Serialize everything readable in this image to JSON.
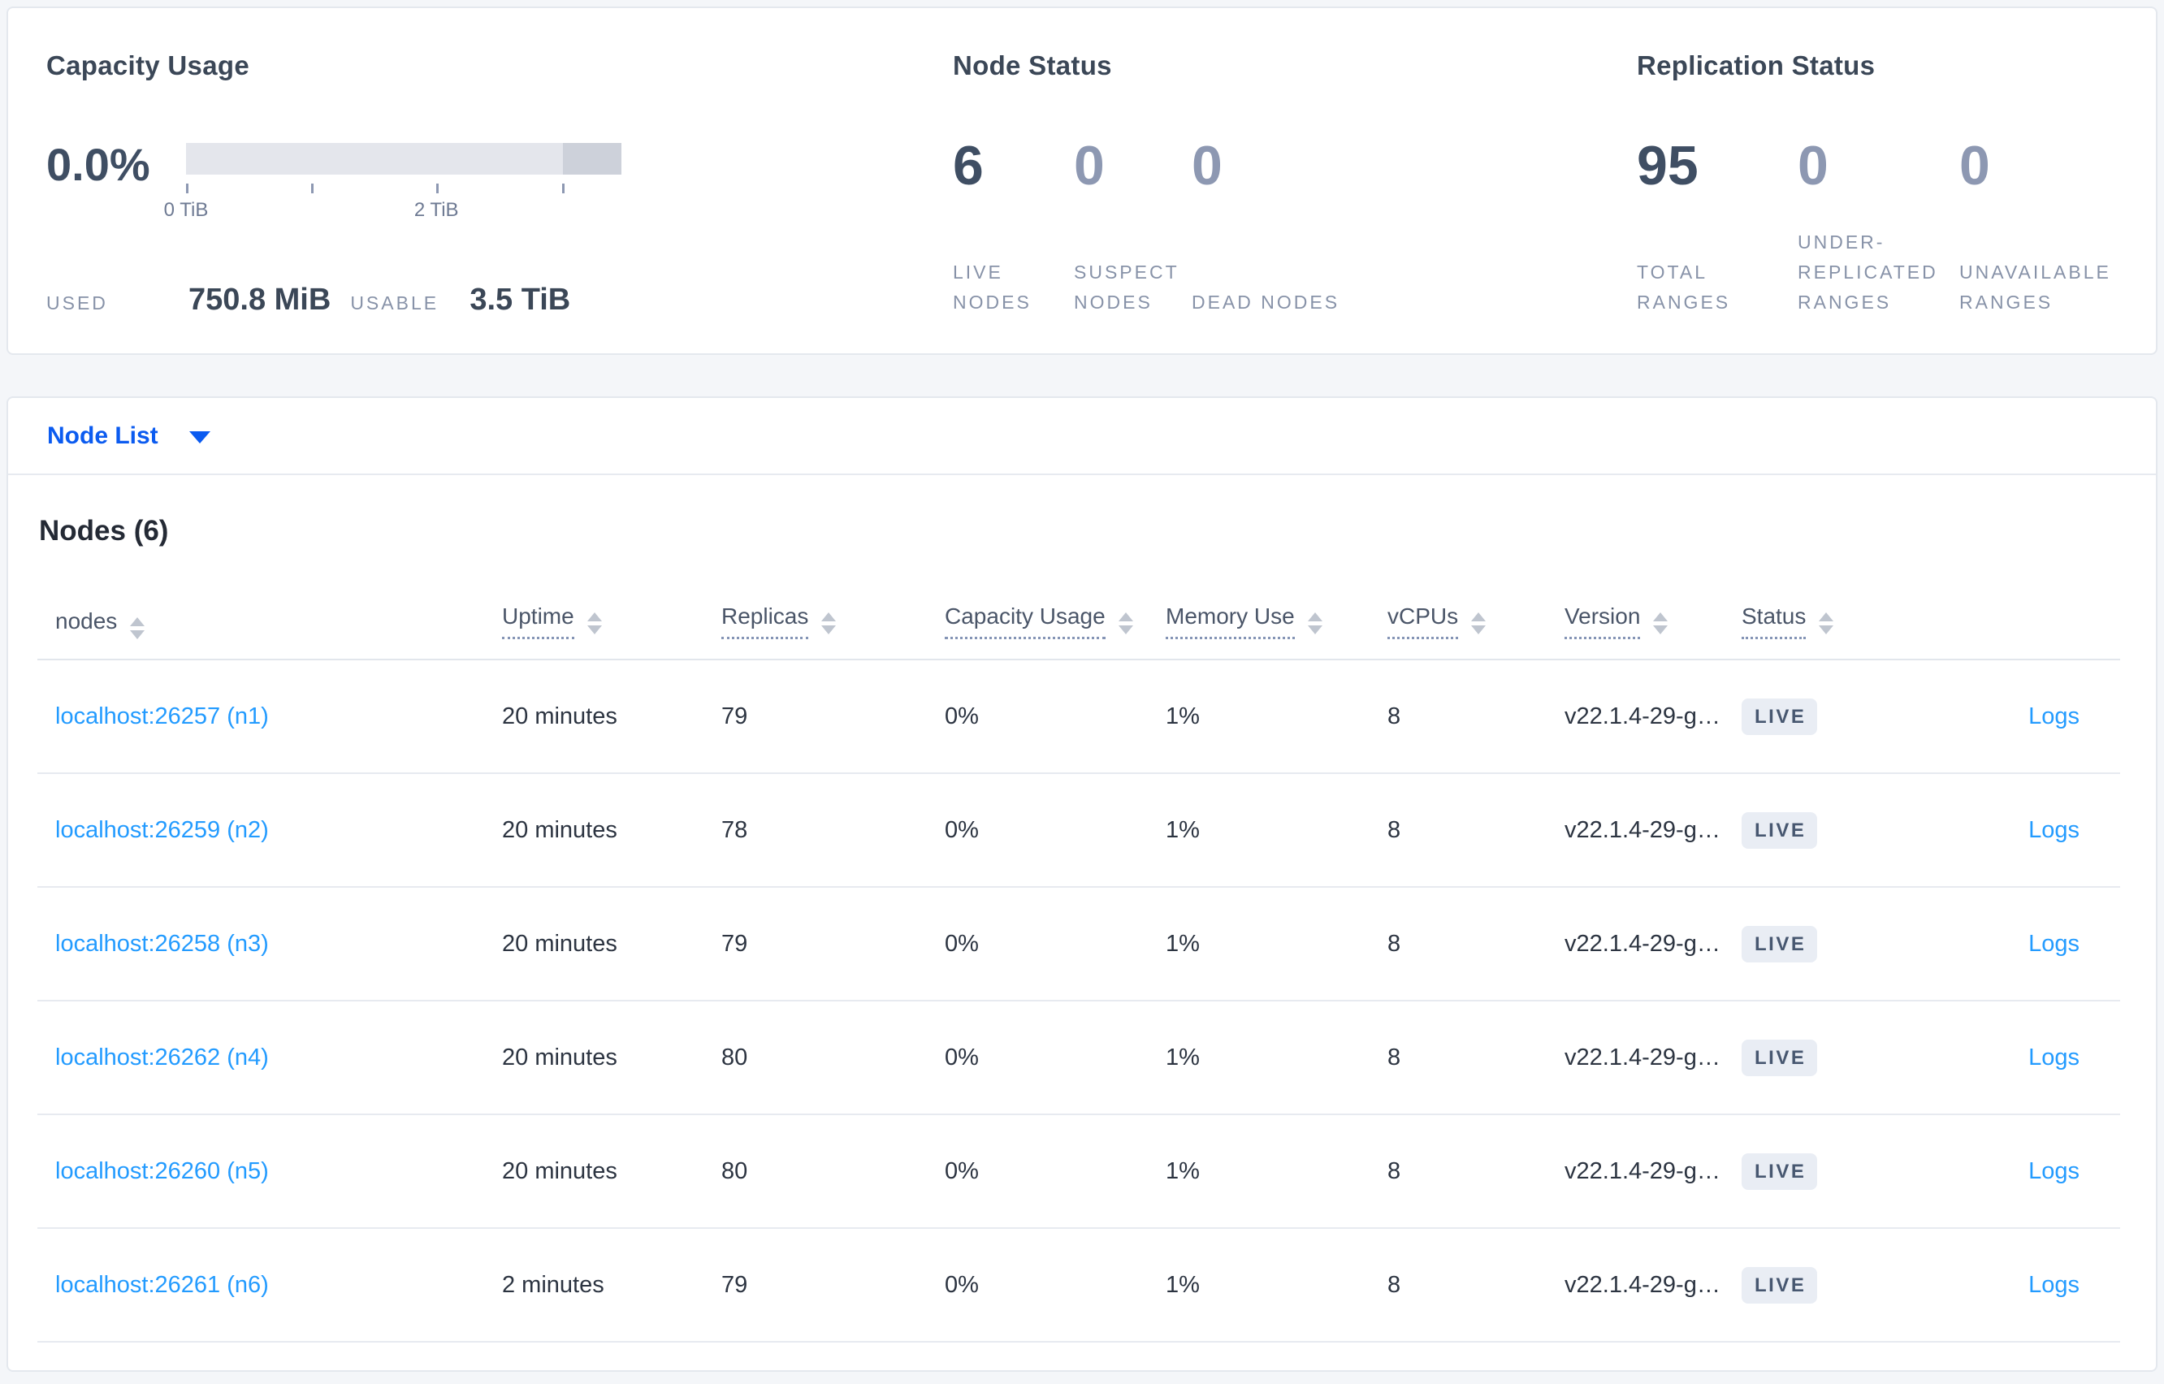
{
  "summary": {
    "capacity": {
      "title": "Capacity Usage",
      "percent": "0.0%",
      "used_label": "USED",
      "used_value": "750.8 MiB",
      "usable_label": "USABLE",
      "usable_value": "3.5 TiB",
      "bar": {
        "axis_min_tib": 0,
        "axis_max_tib": 3.5,
        "dark_segment_from_tib": 3.0,
        "ticks": [
          {
            "label": "0 TiB",
            "pos_pct": 0
          },
          {
            "label": "",
            "pos_pct": 28.7
          },
          {
            "label": "2 TiB",
            "pos_pct": 57.5
          },
          {
            "label": "",
            "pos_pct": 86.3
          }
        ]
      }
    },
    "node_status": {
      "title": "Node Status",
      "stats": [
        {
          "value": "6",
          "label": "LIVE NODES",
          "emphasis": true
        },
        {
          "value": "0",
          "label": "SUSPECT NODES",
          "emphasis": false
        },
        {
          "value": "0",
          "label": "DEAD NODES",
          "emphasis": false
        }
      ]
    },
    "replication_status": {
      "title": "Replication Status",
      "stats": [
        {
          "value": "95",
          "label": "TOTAL RANGES",
          "emphasis": true
        },
        {
          "value": "0",
          "label": "UNDER-REPLICATED RANGES",
          "emphasis": false
        },
        {
          "value": "0",
          "label": "UNAVAILABLE RANGES",
          "emphasis": false
        }
      ]
    }
  },
  "view_selector": {
    "label": "Node List"
  },
  "table": {
    "title": "Nodes (6)",
    "columns": [
      {
        "key": "node",
        "label": "nodes",
        "tooltip_underline": false,
        "sortable": true
      },
      {
        "key": "uptime",
        "label": "Uptime",
        "tooltip_underline": true,
        "sortable": true
      },
      {
        "key": "replicas",
        "label": "Replicas",
        "tooltip_underline": true,
        "sortable": true
      },
      {
        "key": "capacity",
        "label": "Capacity Usage",
        "tooltip_underline": true,
        "sortable": true
      },
      {
        "key": "memory",
        "label": "Memory Use",
        "tooltip_underline": true,
        "sortable": true
      },
      {
        "key": "vcpus",
        "label": "vCPUs",
        "tooltip_underline": true,
        "sortable": true
      },
      {
        "key": "version",
        "label": "Version",
        "tooltip_underline": true,
        "sortable": true
      },
      {
        "key": "status",
        "label": "Status",
        "tooltip_underline": true,
        "sortable": true
      },
      {
        "key": "logs",
        "label": "",
        "tooltip_underline": false,
        "sortable": false
      }
    ],
    "rows": [
      {
        "node": "localhost:26257 (n1)",
        "uptime": "20 minutes",
        "replicas": "79",
        "capacity": "0%",
        "memory": "1%",
        "vcpus": "8",
        "version": "v22.1.4-29-g…",
        "status": "LIVE",
        "logs": "Logs"
      },
      {
        "node": "localhost:26259 (n2)",
        "uptime": "20 minutes",
        "replicas": "78",
        "capacity": "0%",
        "memory": "1%",
        "vcpus": "8",
        "version": "v22.1.4-29-g…",
        "status": "LIVE",
        "logs": "Logs"
      },
      {
        "node": "localhost:26258 (n3)",
        "uptime": "20 minutes",
        "replicas": "79",
        "capacity": "0%",
        "memory": "1%",
        "vcpus": "8",
        "version": "v22.1.4-29-g…",
        "status": "LIVE",
        "logs": "Logs"
      },
      {
        "node": "localhost:26262 (n4)",
        "uptime": "20 minutes",
        "replicas": "80",
        "capacity": "0%",
        "memory": "1%",
        "vcpus": "8",
        "version": "v22.1.4-29-g…",
        "status": "LIVE",
        "logs": "Logs"
      },
      {
        "node": "localhost:26260 (n5)",
        "uptime": "20 minutes",
        "replicas": "80",
        "capacity": "0%",
        "memory": "1%",
        "vcpus": "8",
        "version": "v22.1.4-29-g…",
        "status": "LIVE",
        "logs": "Logs"
      },
      {
        "node": "localhost:26261 (n6)",
        "uptime": "2 minutes",
        "replicas": "79",
        "capacity": "0%",
        "memory": "1%",
        "vcpus": "8",
        "version": "v22.1.4-29-g…",
        "status": "LIVE",
        "logs": "Logs"
      }
    ]
  },
  "colors": {
    "accent_link_light": "#239bff",
    "accent_link_strong": "#0b5bf0",
    "metric_dark": "#3f4e63",
    "metric_muted": "#8d98b2",
    "badge_bg": "#e9edf4",
    "badge_text": "#475770",
    "bar_light": "#e4e6ec",
    "bar_dark": "#cdd1da",
    "page_bg": "#f4f6f9"
  }
}
